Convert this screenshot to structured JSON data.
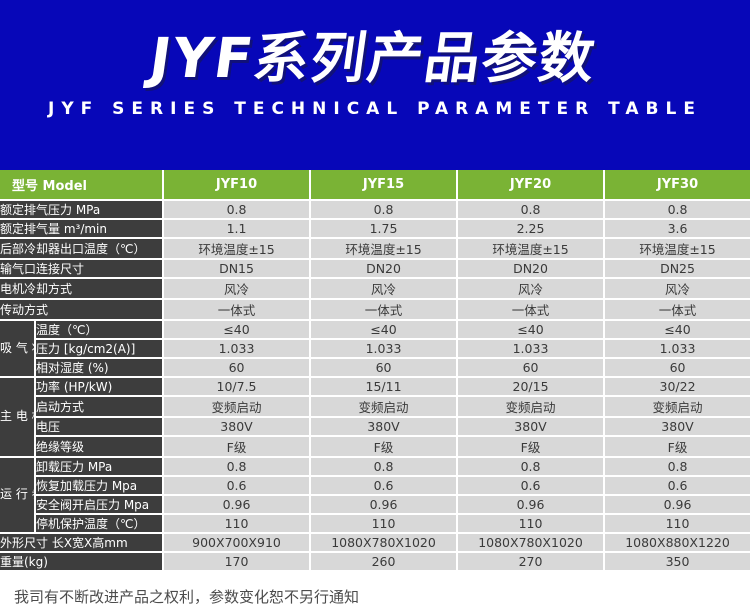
{
  "banner": {
    "title": "JYF系列产品参数",
    "subtitle": "JYF SERIES TECHNICAL PARAMETER TABLE",
    "bg_color": "#0707b8",
    "text_color": "#ffffff"
  },
  "table": {
    "colors": {
      "header_bg": "#7ab335",
      "label_bg": "#3d3d3d",
      "cell_bg": "#d8d8d8",
      "grid": "#ffffff",
      "label_text": "#ffffff",
      "cell_text": "#3a3a3a"
    },
    "header": {
      "label": "型号 Model",
      "models": [
        "JYF10",
        "JYF15",
        "JYF20",
        "JYF30"
      ]
    },
    "rows": [
      {
        "label": "额定排气压力 MPa",
        "values": [
          "0.8",
          "0.8",
          "0.8",
          "0.8"
        ]
      },
      {
        "label": "额定排气量 m³/min",
        "values": [
          "1.1",
          "1.75",
          "2.25",
          "3.6"
        ]
      },
      {
        "label": "后部冷却器出口温度（℃）",
        "values": [
          "环境温度±15",
          "环境温度±15",
          "环境温度±15",
          "环境温度±15"
        ]
      },
      {
        "label": "输气口连接尺寸",
        "values": [
          "DN15",
          "DN20",
          "DN20",
          "DN25"
        ]
      },
      {
        "label": "电机冷却方式",
        "values": [
          "风冷",
          "风冷",
          "风冷",
          "风冷"
        ]
      },
      {
        "label": "传动方式",
        "values": [
          "一体式",
          "一体式",
          "一体式",
          "一体式"
        ]
      },
      {
        "group": "吸气状态",
        "group_span": 3,
        "label": "温度（℃）",
        "values": [
          "≤40",
          "≤40",
          "≤40",
          "≤40"
        ]
      },
      {
        "label": "压力 [kg/cm2(A)]",
        "values": [
          "1.033",
          "1.033",
          "1.033",
          "1.033"
        ]
      },
      {
        "label": "相对湿度 (%)",
        "values": [
          "60",
          "60",
          "60",
          "60"
        ]
      },
      {
        "group": "主电机",
        "group_span": 4,
        "label": "功率 (HP/kW)",
        "values": [
          "10/7.5",
          "15/11",
          "20/15",
          "30/22"
        ]
      },
      {
        "label": "启动方式",
        "values": [
          "变频启动",
          "变频启动",
          "变频启动",
          "变频启动"
        ]
      },
      {
        "label": "电压",
        "values": [
          "380V",
          "380V",
          "380V",
          "380V"
        ]
      },
      {
        "label": "绝缘等级",
        "values": [
          "F级",
          "F级",
          "F级",
          "F级"
        ]
      },
      {
        "group": "运行参数",
        "group_span": 4,
        "label": "卸载压力 MPa",
        "values": [
          "0.8",
          "0.8",
          "0.8",
          "0.8"
        ]
      },
      {
        "label": "恢复加载压力 Mpa",
        "values": [
          "0.6",
          "0.6",
          "0.6",
          "0.6"
        ]
      },
      {
        "label": "安全阀开启压力 Mpa",
        "values": [
          "0.96",
          "0.96",
          "0.96",
          "0.96"
        ]
      },
      {
        "label": "停机保护温度（℃）",
        "values": [
          "110",
          "110",
          "110",
          "110"
        ]
      },
      {
        "label": "外形尺寸 长X宽X高mm",
        "values": [
          "900X700X910",
          "1080X780X1020",
          "1080X780X1020",
          "1080X880X1220"
        ]
      },
      {
        "label": "重量(kg)",
        "values": [
          "170",
          "260",
          "270",
          "350"
        ]
      }
    ]
  },
  "footer": {
    "note": "我司有不断改进产品之权利，参数变化恕不另行通知"
  }
}
